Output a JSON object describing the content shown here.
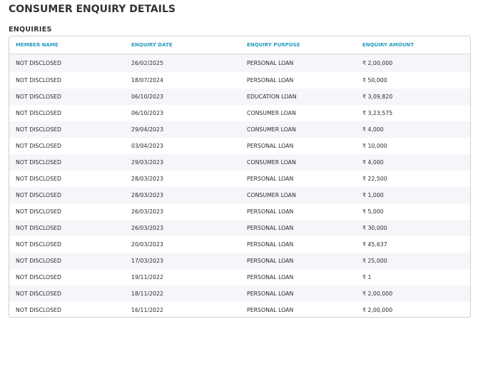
{
  "page": {
    "title": "CONSUMER ENQUIRY DETAILS",
    "section_title": "ENQUIRIES"
  },
  "table": {
    "headers": {
      "member_name": "MEMBER NAME",
      "enquiry_date": "ENQUIRY DATE",
      "enquiry_purpose": "ENQUIRY PURPOSE",
      "enquiry_amount": "ENQUIRY AMOUNT"
    },
    "rows": [
      {
        "member": "NOT DISCLOSED",
        "date": "26/02/2025",
        "purpose": "PERSONAL LOAN",
        "amount": "₹ 2,00,000"
      },
      {
        "member": "NOT DISCLOSED",
        "date": "18/07/2024",
        "purpose": "PERSONAL LOAN",
        "amount": "₹ 50,000"
      },
      {
        "member": "NOT DISCLOSED",
        "date": "06/10/2023",
        "purpose": "EDUCATION LOAN",
        "amount": "₹ 3,09,820"
      },
      {
        "member": "NOT DISCLOSED",
        "date": "06/10/2023",
        "purpose": "CONSUMER LOAN",
        "amount": "₹ 3,23,575"
      },
      {
        "member": "NOT DISCLOSED",
        "date": "29/04/2023",
        "purpose": "CONSUMER LOAN",
        "amount": "₹ 4,000"
      },
      {
        "member": "NOT DISCLOSED",
        "date": "03/04/2023",
        "purpose": "PERSONAL LOAN",
        "amount": "₹ 10,000"
      },
      {
        "member": "NOT DISCLOSED",
        "date": "29/03/2023",
        "purpose": "CONSUMER LOAN",
        "amount": "₹ 4,000"
      },
      {
        "member": "NOT DISCLOSED",
        "date": "28/03/2023",
        "purpose": "PERSONAL LOAN",
        "amount": "₹ 22,500"
      },
      {
        "member": "NOT DISCLOSED",
        "date": "28/03/2023",
        "purpose": "CONSUMER LOAN",
        "amount": "₹ 1,000"
      },
      {
        "member": "NOT DISCLOSED",
        "date": "26/03/2023",
        "purpose": "PERSONAL LOAN",
        "amount": "₹ 5,000"
      },
      {
        "member": "NOT DISCLOSED",
        "date": "26/03/2023",
        "purpose": "PERSONAL LOAN",
        "amount": "₹ 30,000"
      },
      {
        "member": "NOT DISCLOSED",
        "date": "20/03/2023",
        "purpose": "PERSONAL LOAN",
        "amount": "₹ 45,637"
      },
      {
        "member": "NOT DISCLOSED",
        "date": "17/03/2023",
        "purpose": "PERSONAL LOAN",
        "amount": "₹ 25,000"
      },
      {
        "member": "NOT DISCLOSED",
        "date": "19/11/2022",
        "purpose": "PERSONAL LOAN",
        "amount": "₹ 1"
      },
      {
        "member": "NOT DISCLOSED",
        "date": "18/11/2022",
        "purpose": "PERSONAL LOAN",
        "amount": "₹ 2,00,000"
      },
      {
        "member": "NOT DISCLOSED",
        "date": "16/11/2022",
        "purpose": "PERSONAL LOAN",
        "amount": "₹ 2,00,000"
      }
    ]
  },
  "colors": {
    "header_text": "#2a9bbf",
    "title_text": "#333333",
    "row_stripe": "#f5f6fa"
  }
}
